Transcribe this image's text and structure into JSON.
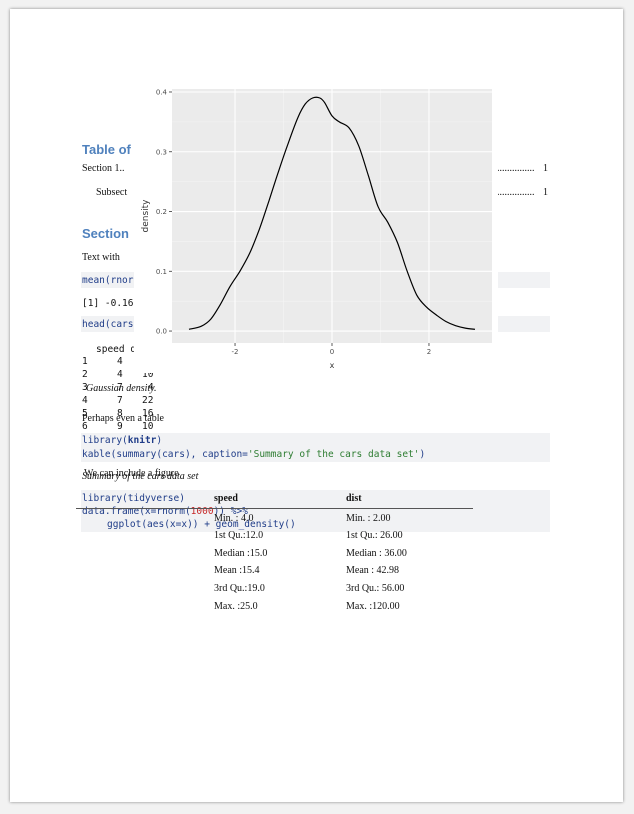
{
  "toc": {
    "title": "Table of",
    "entries": [
      {
        "label": "Section 1..",
        "page": "1",
        "indent": false
      },
      {
        "label": "Subsect",
        "page": "1",
        "indent": true
      }
    ]
  },
  "section": {
    "title": "Section",
    "text": "Text with"
  },
  "code_block_1": {
    "line1": "mean(rnorm",
    "output": "[1] -0.16",
    "line2": "head(cars",
    "table_header": "speed d",
    "rows": [
      {
        "idx": "1",
        "speed": "4",
        "dist": ""
      },
      {
        "idx": "2",
        "speed": "4",
        "dist": "10"
      },
      {
        "idx": "3",
        "speed": "7",
        "dist": "4"
      },
      {
        "idx": "4",
        "speed": "7",
        "dist": "22"
      },
      {
        "idx": "5",
        "speed": "8",
        "dist": "16"
      },
      {
        "idx": "6",
        "speed": "9",
        "dist": "10"
      }
    ]
  },
  "figure_caption": "Gaussian density.",
  "para_table": "Perhaps even a table",
  "code_block_2": {
    "line1_fn": "library",
    "line1_arg": "knitr",
    "line2_fn": "kable",
    "line2_mid": "(summary(cars), caption=",
    "line2_str": "'Summary of the cars data set'",
    "line2_end": ")"
  },
  "table_caption": "Summary of the cars data set",
  "para_figure": "We can include a figure",
  "code_block_3": {
    "line1": "library(tidyverse)",
    "line2_a": "data.frame(x=rnorm(",
    "line2_num": "1000",
    "line2_b": ")) %>%",
    "line3": "ggplot(aes(x=x)) + geom_density()"
  },
  "summary_table": {
    "headers": [
      "speed",
      "dist"
    ],
    "rows": [
      [
        "Min. : 4.0",
        "Min. : 2.00"
      ],
      [
        "1st Qu.:12.0",
        "1st Qu.: 26.00"
      ],
      [
        "Median :15.0",
        "Median : 36.00"
      ],
      [
        "Mean :15.4",
        "Mean : 42.98"
      ],
      [
        "3rd Qu.:19.0",
        "3rd Qu.: 56.00"
      ],
      [
        "Max. :25.0",
        "Max. :120.00"
      ]
    ]
  },
  "chart_data": {
    "type": "area",
    "xlabel": "x",
    "ylabel": "density",
    "xlim": [
      -3.3,
      3.3
    ],
    "ylim": [
      -0.02,
      0.405
    ],
    "x_ticks": [
      -2,
      0,
      2
    ],
    "y_ticks": [
      0.0,
      0.1,
      0.2,
      0.3,
      0.4
    ],
    "x_tick_labels": [
      "-2",
      "0",
      "2"
    ],
    "y_tick_labels": [
      "0.0",
      "0.1",
      "0.2",
      "0.3",
      "0.4"
    ],
    "grid": true,
    "panel_color": "#ebebeb",
    "series": [
      {
        "x": [
          -2.95,
          -2.7,
          -2.5,
          -2.3,
          -2.1,
          -1.9,
          -1.7,
          -1.5,
          -1.3,
          -1.1,
          -0.9,
          -0.7,
          -0.55,
          -0.4,
          -0.25,
          -0.15,
          0.0,
          0.15,
          0.35,
          0.55,
          0.75,
          0.95,
          1.15,
          1.35,
          1.55,
          1.75,
          1.95,
          2.15,
          2.35,
          2.55,
          2.75,
          2.95
        ],
        "y": [
          0.003,
          0.008,
          0.02,
          0.045,
          0.075,
          0.1,
          0.13,
          0.17,
          0.218,
          0.268,
          0.315,
          0.358,
          0.38,
          0.39,
          0.39,
          0.382,
          0.36,
          0.35,
          0.34,
          0.31,
          0.26,
          0.208,
          0.182,
          0.148,
          0.1,
          0.06,
          0.04,
          0.027,
          0.016,
          0.009,
          0.005,
          0.003
        ]
      }
    ]
  }
}
